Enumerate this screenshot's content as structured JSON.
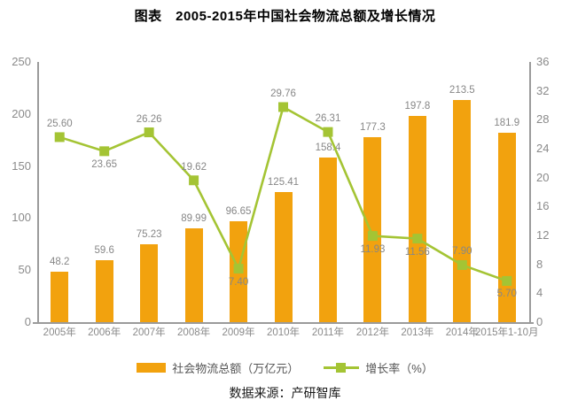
{
  "title": "图表　2005-2015年中国社会物流总额及增长情况",
  "source": "数据来源：产研智库",
  "legend": {
    "bar_label": "社会物流总额（万亿元）",
    "line_label": "增长率（%）"
  },
  "colors": {
    "bar": "#F2A20E",
    "line": "#A4C434",
    "label_gray": "#878787",
    "axis_gray": "#9B9B9B",
    "title_black": "#000000"
  },
  "chart_data": {
    "type": "bar+line",
    "title": "图表　2005-2015年中国社会物流总额及增长情况",
    "categories": [
      "2005年",
      "2006年",
      "2007年",
      "2008年",
      "2009年",
      "2010年",
      "2011年",
      "2012年",
      "2013年",
      "2014年",
      "2015年1-10月"
    ],
    "series": [
      {
        "name": "社会物流总额（万亿元）",
        "type": "bar",
        "axis": "left",
        "values": [
          48.2,
          59.6,
          75.23,
          89.99,
          96.65,
          125.41,
          158.4,
          177.3,
          197.8,
          213.5,
          181.9
        ],
        "labels": [
          "48.2",
          "59.6",
          "75.23",
          "89.99",
          "96.65",
          "125.41",
          "158.4",
          "177.3",
          "197.8",
          "213.5",
          "181.9"
        ]
      },
      {
        "name": "增长率（%）",
        "type": "line",
        "axis": "right",
        "values": [
          25.6,
          23.65,
          26.26,
          19.62,
          7.4,
          29.76,
          26.31,
          11.93,
          11.56,
          7.9,
          5.7
        ],
        "labels": [
          "25.60",
          "23.65",
          "26.26",
          "19.62",
          "7.40",
          "29.76",
          "26.31",
          "11.93",
          "11.56",
          "7.90",
          "5.70"
        ],
        "label_positions": [
          "above",
          "below",
          "above",
          "above",
          "below",
          "above",
          "above",
          "below",
          "below",
          "above",
          "below"
        ]
      }
    ],
    "left_axis": {
      "min": 0,
      "max": 250,
      "ticks": [
        0,
        50,
        100,
        150,
        200,
        250
      ]
    },
    "right_axis": {
      "min": 0,
      "max": 36,
      "ticks": [
        0,
        4,
        8,
        12,
        16,
        20,
        24,
        28,
        32,
        36
      ]
    },
    "grid": false,
    "legend_position": "bottom"
  }
}
